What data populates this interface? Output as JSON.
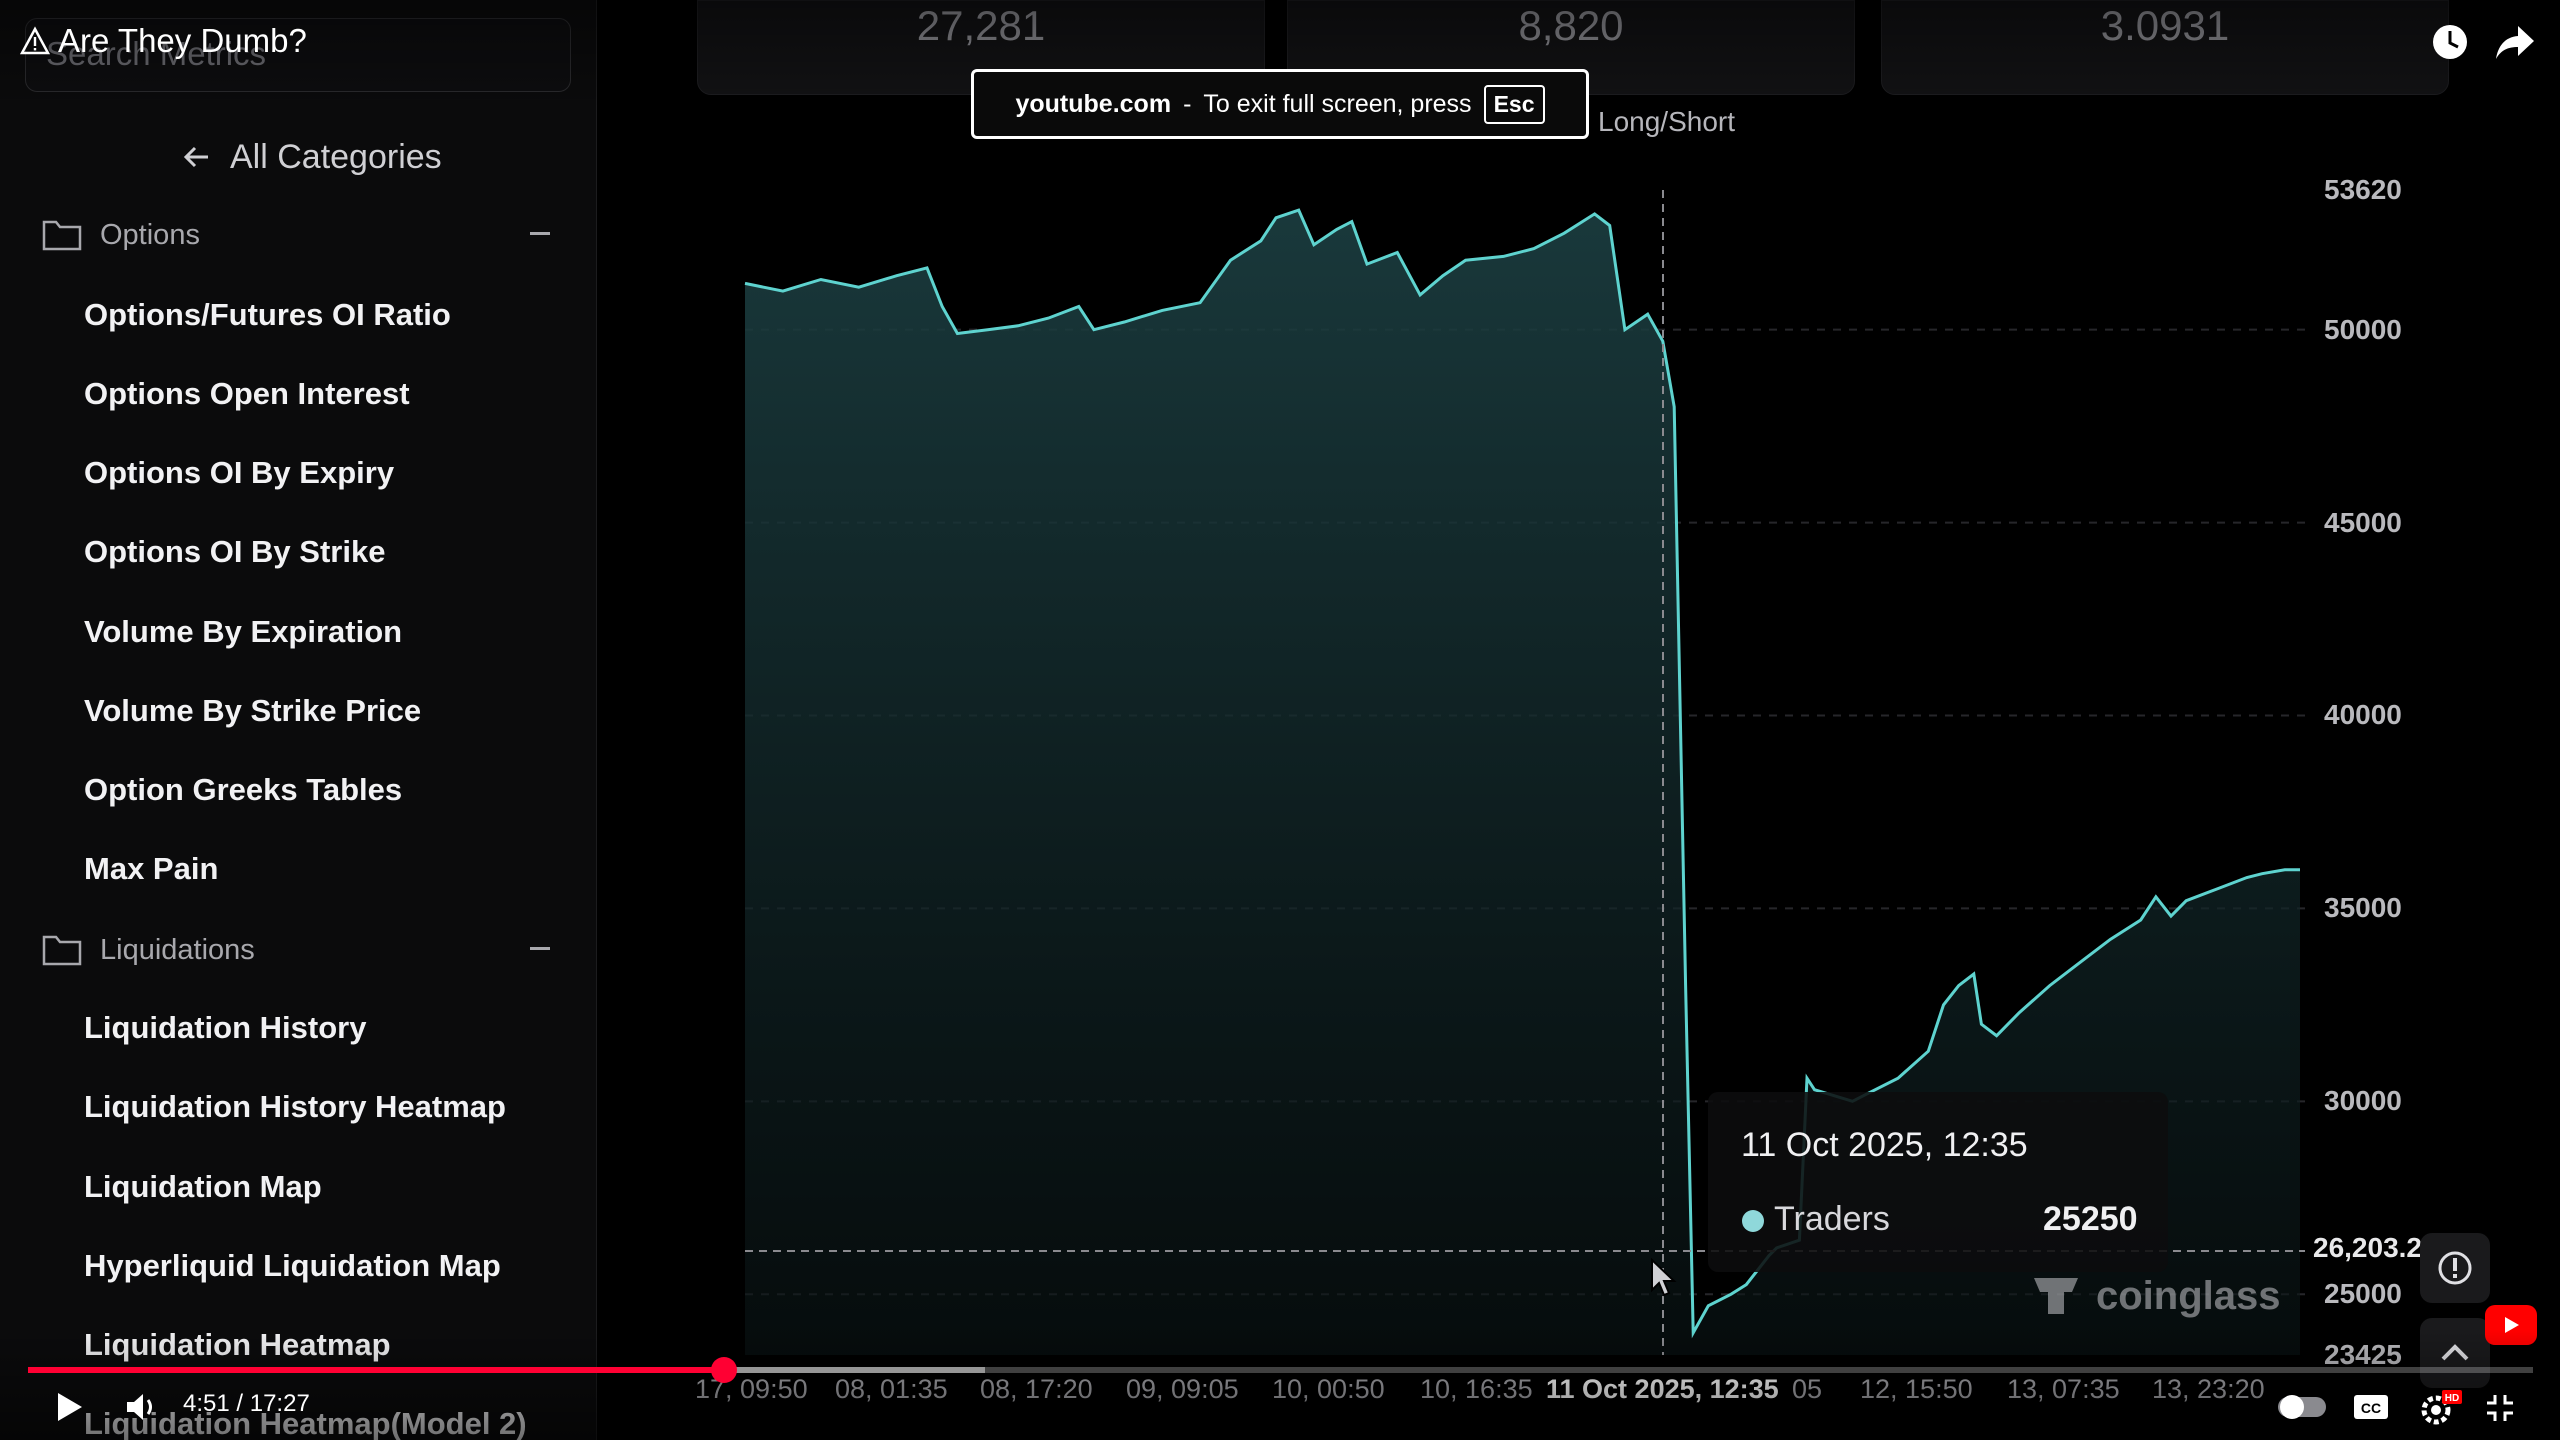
{
  "sidebar": {
    "search_placeholder": "Search Metrics",
    "all_categories": "All Categories",
    "categories": [
      {
        "name": "Options",
        "items": [
          "Options/Futures OI Ratio",
          "Options Open Interest",
          "Options OI By Expiry",
          "Options OI By Strike",
          "Volume By Expiration",
          "Volume By Strike Price",
          "Option Greeks Tables",
          "Max Pain"
        ]
      },
      {
        "name": "Liquidations",
        "items": [
          "Liquidation History",
          "Liquidation History Heatmap",
          "Liquidation Map",
          "Hyperliquid Liquidation Map",
          "Liquidation Heatmap",
          "Liquidation Heatmap(Model 2)"
        ]
      }
    ]
  },
  "stats": [
    "27,281",
    "8,820",
    "3.0931"
  ],
  "chart_legend_label": "Long/Short",
  "chart_data": {
    "type": "area",
    "series": [
      {
        "name": "Traders",
        "points": [
          [
            0,
            51200
          ],
          [
            0.5,
            51000
          ],
          [
            1,
            51300
          ],
          [
            1.5,
            51100
          ],
          [
            2,
            51400
          ],
          [
            2.4,
            51600
          ],
          [
            2.6,
            50600
          ],
          [
            2.8,
            49900
          ],
          [
            3.2,
            50000
          ],
          [
            3.6,
            50100
          ],
          [
            4,
            50300
          ],
          [
            4.4,
            50600
          ],
          [
            4.6,
            50000
          ],
          [
            5,
            50200
          ],
          [
            5.5,
            50500
          ],
          [
            6,
            50700
          ],
          [
            6.4,
            51800
          ],
          [
            6.8,
            52300
          ],
          [
            7,
            52900
          ],
          [
            7.3,
            53100
          ],
          [
            7.5,
            52200
          ],
          [
            7.8,
            52600
          ],
          [
            8,
            52800
          ],
          [
            8.2,
            51700
          ],
          [
            8.6,
            52000
          ],
          [
            8.9,
            50900
          ],
          [
            9.2,
            51400
          ],
          [
            9.5,
            51800
          ],
          [
            10,
            51900
          ],
          [
            10.4,
            52100
          ],
          [
            10.8,
            52500
          ],
          [
            11.2,
            53000
          ],
          [
            11.4,
            52700
          ],
          [
            11.6,
            50000
          ],
          [
            11.9,
            50400
          ],
          [
            12.1,
            49700
          ],
          [
            12.25,
            48000
          ],
          [
            12.4,
            33000
          ],
          [
            12.5,
            24000
          ],
          [
            12.7,
            24700
          ],
          [
            13.0,
            25000
          ],
          [
            13.2,
            25250
          ],
          [
            13.5,
            26000
          ],
          [
            13.6,
            26200
          ],
          [
            13.9,
            26400
          ],
          [
            14.0,
            30600
          ],
          [
            14.1,
            30300
          ],
          [
            14.6,
            30000
          ],
          [
            14.8,
            30200
          ],
          [
            15.2,
            30600
          ],
          [
            15.6,
            31300
          ],
          [
            15.8,
            32500
          ],
          [
            16.0,
            33000
          ],
          [
            16.2,
            33300
          ],
          [
            16.3,
            32000
          ],
          [
            16.5,
            31700
          ],
          [
            16.8,
            32300
          ],
          [
            17.2,
            33000
          ],
          [
            17.6,
            33600
          ],
          [
            18.0,
            34200
          ],
          [
            18.4,
            34700
          ],
          [
            18.6,
            35300
          ],
          [
            18.8,
            34800
          ],
          [
            19.0,
            35200
          ],
          [
            19.4,
            35500
          ],
          [
            19.8,
            35800
          ],
          [
            20.0,
            35900
          ],
          [
            20.3,
            36000
          ],
          [
            20.5,
            36000
          ]
        ]
      }
    ],
    "ylim": [
      23425,
      53620
    ],
    "y_ticks": [
      "53620",
      "50000",
      "45000",
      "40000",
      "35000",
      "30000",
      "25000",
      "23425"
    ],
    "x_ticks": [
      "17, 09:50",
      "08, 01:35",
      "08, 17:20",
      "09, 09:05",
      "10, 00:50",
      "10, 16:35",
      "11 Oct 2025, 12:35",
      "05",
      "12, 15:50",
      "13, 07:35",
      "13, 23:20"
    ],
    "crosshair_value_label": "26,203.2",
    "grid": "dashed",
    "color": "#5ed3cf"
  },
  "tooltip": {
    "date": "11 Oct 2025, 12:35",
    "series_name": "Traders",
    "value": "25250"
  },
  "watermark": "coinglass",
  "youtube": {
    "title": "Are They Dumb?",
    "toast_site": "youtube.com",
    "toast_text": "To exit full screen, press",
    "toast_key": "Esc",
    "time_current": "4:51",
    "time_total": "17:27",
    "progress_played": 0.278,
    "progress_buffered": 0.382,
    "accent": "#ff0033"
  }
}
